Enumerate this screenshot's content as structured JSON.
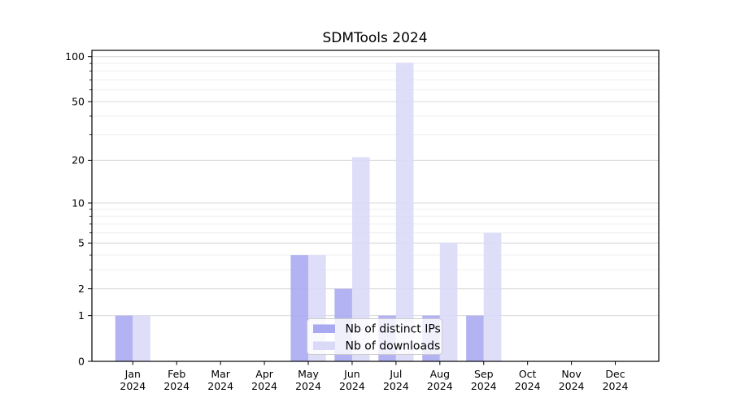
{
  "chart_data": {
    "type": "bar",
    "title": "SDMTools 2024",
    "categories": [
      {
        "month": "Jan",
        "year": "2024"
      },
      {
        "month": "Feb",
        "year": "2024"
      },
      {
        "month": "Mar",
        "year": "2024"
      },
      {
        "month": "Apr",
        "year": "2024"
      },
      {
        "month": "May",
        "year": "2024"
      },
      {
        "month": "Jun",
        "year": "2024"
      },
      {
        "month": "Jul",
        "year": "2024"
      },
      {
        "month": "Aug",
        "year": "2024"
      },
      {
        "month": "Sep",
        "year": "2024"
      },
      {
        "month": "Oct",
        "year": "2024"
      },
      {
        "month": "Nov",
        "year": "2024"
      },
      {
        "month": "Dec",
        "year": "2024"
      }
    ],
    "series": [
      {
        "name": "Nb of distinct IPs",
        "color": "#a9a9f1",
        "values": [
          1,
          0,
          0,
          0,
          4,
          2,
          1,
          1,
          1,
          0,
          0,
          0
        ]
      },
      {
        "name": "Nb of downloads",
        "color": "#dadaf8",
        "values": [
          1,
          0,
          0,
          0,
          4,
          21,
          91,
          5,
          6,
          0,
          0,
          0
        ]
      }
    ],
    "yscale": "log1p",
    "ylim": [
      0,
      110
    ],
    "yticks": [
      0,
      1,
      2,
      5,
      10,
      20,
      50,
      100
    ],
    "yticks_minor": [
      3,
      4,
      6,
      7,
      8,
      9,
      30,
      40,
      60,
      70,
      80,
      90
    ],
    "grid": true,
    "legend_position": "lower center",
    "colors": {
      "major_grid": "#d9d9d9",
      "minor_grid": "#efefef",
      "axis": "#000000",
      "text": "#000000",
      "legend_border": "#cccccc",
      "legend_bg": "#ffffff"
    }
  }
}
